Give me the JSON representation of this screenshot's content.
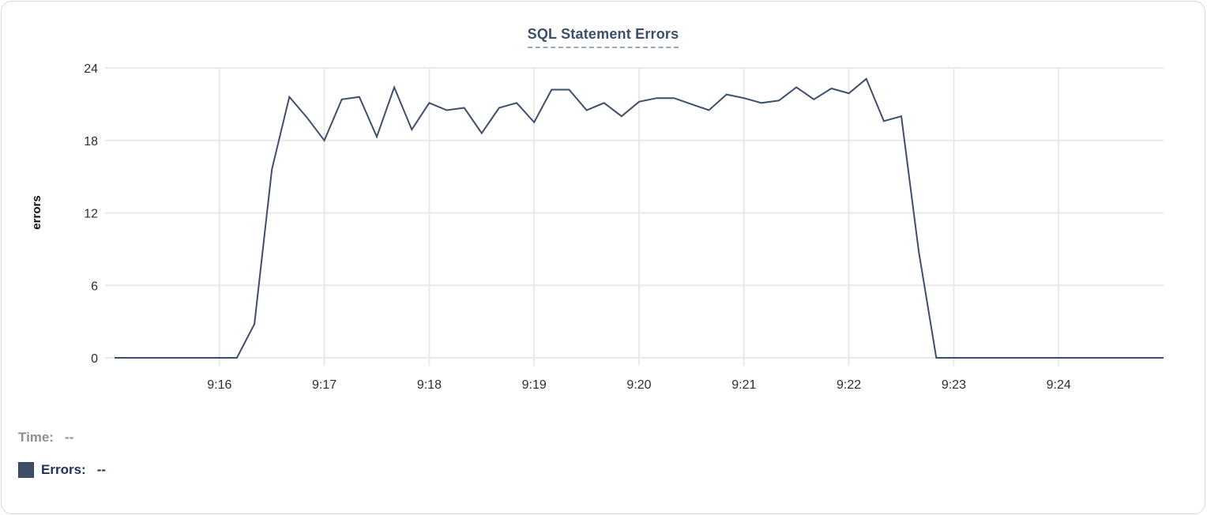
{
  "card": {
    "title": "SQL Statement Errors"
  },
  "footer": {
    "time_label": "Time:",
    "time_value": "--",
    "errors_label": "Errors:",
    "errors_value": "--"
  },
  "colors": {
    "line": "#3e4e6b",
    "grid": "#e9e9e9",
    "tick_label": "#2e2e2e",
    "axis_title": "#111111",
    "title": "#3c4e68",
    "legend_swatch": "#3e4e69"
  },
  "chart_data": {
    "type": "line",
    "title": "SQL Statement Errors",
    "xlabel": "",
    "ylabel": "errors",
    "ylim": [
      0,
      24
    ],
    "xlim": [
      "9:15:00",
      "9:25:00"
    ],
    "y_ticks": [
      0,
      6,
      12,
      18,
      24
    ],
    "x_ticks": [
      "9:16",
      "9:17",
      "9:18",
      "9:19",
      "9:20",
      "9:21",
      "9:22",
      "9:23",
      "9:24"
    ],
    "grid": true,
    "legend_position": "bottom-left",
    "series": [
      {
        "name": "Errors",
        "x": [
          "9:15:00",
          "9:15:10",
          "9:15:20",
          "9:15:30",
          "9:15:40",
          "9:15:50",
          "9:16:00",
          "9:16:10",
          "9:16:20",
          "9:16:30",
          "9:16:40",
          "9:16:50",
          "9:17:00",
          "9:17:10",
          "9:17:20",
          "9:17:30",
          "9:17:40",
          "9:17:50",
          "9:18:00",
          "9:18:10",
          "9:18:20",
          "9:18:30",
          "9:18:40",
          "9:18:50",
          "9:19:00",
          "9:19:10",
          "9:19:20",
          "9:19:30",
          "9:19:40",
          "9:19:50",
          "9:20:00",
          "9:20:10",
          "9:20:20",
          "9:20:30",
          "9:20:40",
          "9:20:50",
          "9:21:00",
          "9:21:10",
          "9:21:20",
          "9:21:30",
          "9:21:40",
          "9:21:50",
          "9:22:00",
          "9:22:10",
          "9:22:20",
          "9:22:30",
          "9:22:40",
          "9:22:50",
          "9:23:00",
          "9:23:10",
          "9:23:20",
          "9:23:30",
          "9:23:40",
          "9:23:50",
          "9:24:00",
          "9:24:10",
          "9:24:20",
          "9:24:30",
          "9:24:40",
          "9:24:50",
          "9:25:00"
        ],
        "values": [
          0,
          0,
          0,
          0,
          0,
          0,
          0,
          0,
          2.8,
          15.6,
          21.6,
          19.9,
          18,
          21.4,
          21.6,
          18.3,
          22.4,
          18.9,
          21.1,
          20.5,
          20.7,
          18.6,
          20.7,
          21.1,
          19.5,
          22.2,
          22.2,
          20.5,
          21.1,
          20,
          21.2,
          21.5,
          21.5,
          21,
          20.5,
          21.8,
          21.5,
          21.1,
          21.3,
          22.4,
          21.4,
          22.3,
          21.9,
          23.1,
          19.6,
          20,
          8.8,
          0,
          0,
          0,
          0,
          0,
          0,
          0,
          0,
          0,
          0,
          0,
          0,
          0,
          0
        ]
      }
    ]
  }
}
